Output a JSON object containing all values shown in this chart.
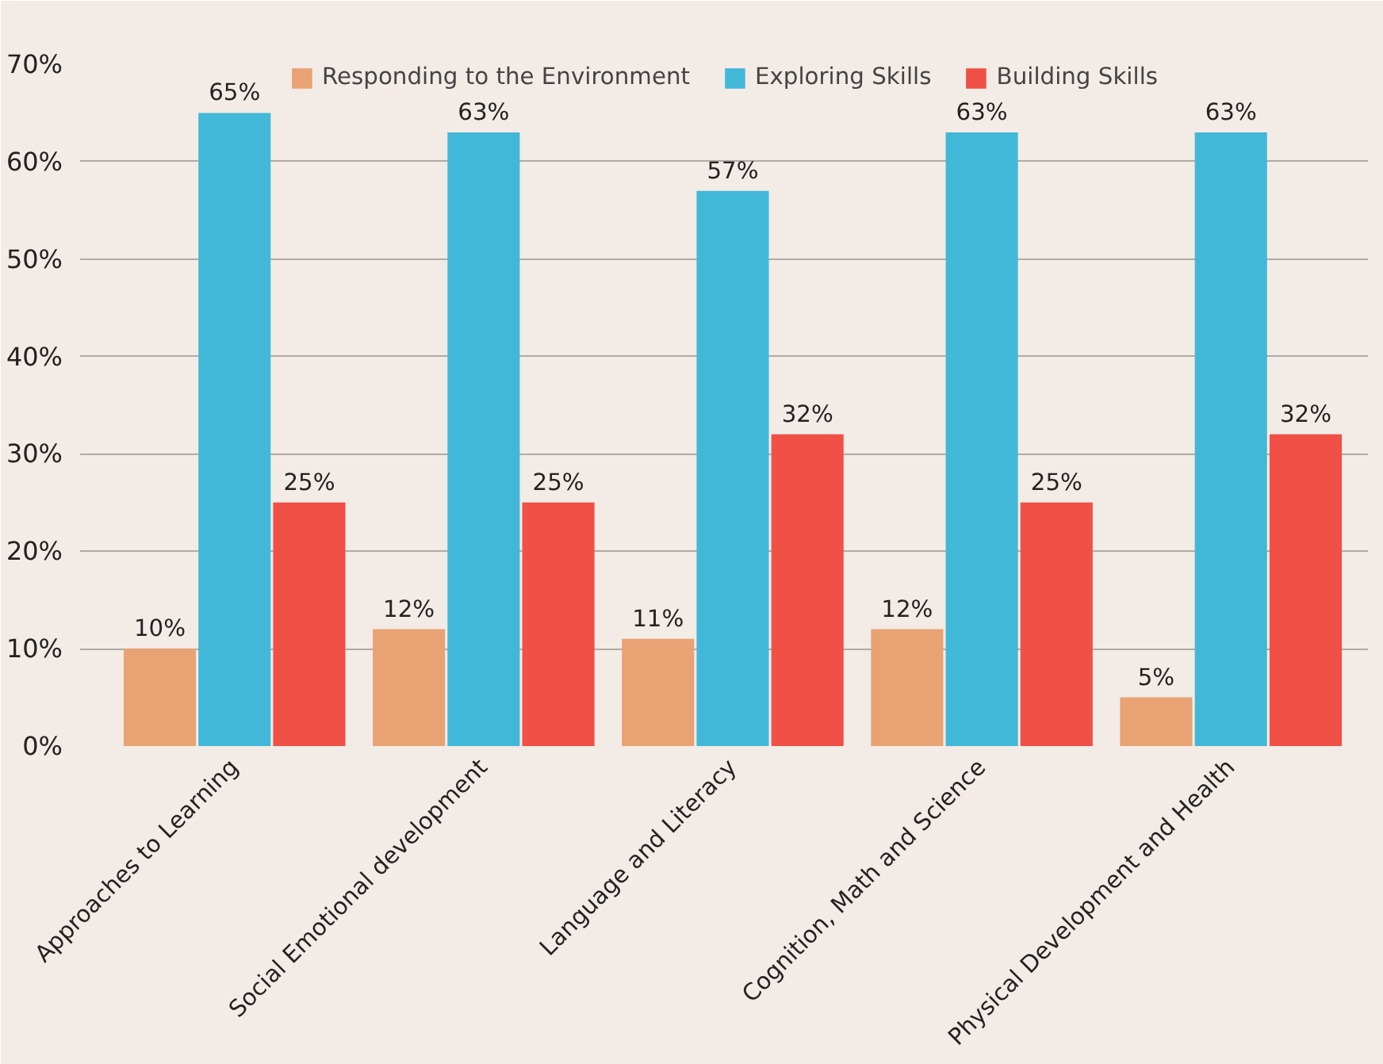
{
  "chart_data": {
    "type": "bar",
    "categories": [
      "Approaches to Learning",
      "Social Emotional development",
      "Language and Literacy",
      "Cognition, Math and Science",
      "Physical Development and Health"
    ],
    "series": [
      {
        "name": "Responding to the Environment",
        "color": "#e8a274",
        "values": [
          10,
          12,
          11,
          12,
          5
        ],
        "value_labels": [
          "10%",
          "12%",
          "11%",
          "12%",
          "5%"
        ]
      },
      {
        "name": "Exploring Skills",
        "color": "#42b8d8",
        "values": [
          65,
          63,
          57,
          63,
          63
        ],
        "value_labels": [
          "65%",
          "63%",
          "57%",
          "63%",
          "63%"
        ]
      },
      {
        "name": "Building Skills",
        "color": "#f05046",
        "values": [
          25,
          25,
          32,
          25,
          32
        ],
        "value_labels": [
          "25%",
          "25%",
          "32%",
          "25%",
          "32%"
        ]
      }
    ],
    "ylim": [
      0,
      70
    ],
    "yticks": [
      {
        "value": 0,
        "label": "0%"
      },
      {
        "value": 10,
        "label": "10%"
      },
      {
        "value": 20,
        "label": "20%"
      },
      {
        "value": 30,
        "label": "30%"
      },
      {
        "value": 40,
        "label": "40%"
      },
      {
        "value": 50,
        "label": "50%"
      },
      {
        "value": 60,
        "label": "60%"
      },
      {
        "value": 70,
        "label": "70%"
      }
    ],
    "grid": "y",
    "legend": "top"
  }
}
